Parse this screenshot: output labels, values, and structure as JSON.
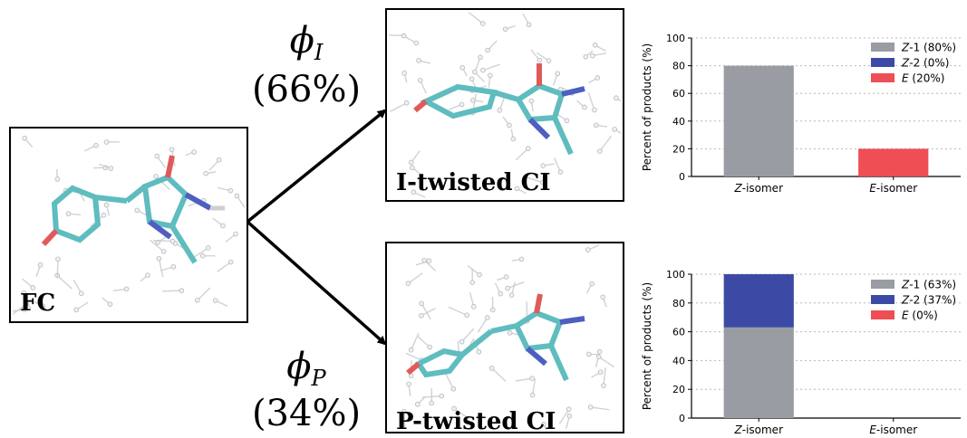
{
  "pathways": {
    "top": {
      "symbol": "ϕ",
      "subscript": "I",
      "percent": "(66%)"
    },
    "bottom": {
      "symbol": "ϕ",
      "subscript": "P",
      "percent": "(34%)"
    }
  },
  "panels": {
    "fc": {
      "label": "FC"
    },
    "i_twisted": {
      "label": "I-twisted CI"
    },
    "p_twisted": {
      "label": "P-twisted CI"
    }
  },
  "chart_data": [
    {
      "type": "bar",
      "stacked": true,
      "categories": [
        "Z-isomer",
        "E-isomer"
      ],
      "ylabel": "Percent of products (%)",
      "ylim": [
        0,
        100
      ],
      "yticks": [
        0,
        20,
        40,
        60,
        80,
        100
      ],
      "grid": true,
      "legend_position": "top-right",
      "series": [
        {
          "name": "Z-1 (80%)",
          "italic": "Z",
          "rest": "-1 (80%)",
          "values": [
            80,
            0
          ],
          "color": "#9a9ca3"
        },
        {
          "name": "Z-2 (0%)",
          "italic": "Z",
          "rest": "-2 (0%)",
          "values": [
            0,
            0
          ],
          "color": "#3d4aa5"
        },
        {
          "name": "E (20%)",
          "italic": "E",
          "rest": " (20%)",
          "values": [
            0,
            20
          ],
          "color": "#ee4e55"
        }
      ]
    },
    {
      "type": "bar",
      "stacked": true,
      "categories": [
        "Z-isomer",
        "E-isomer"
      ],
      "ylabel": "Percent of products (%)",
      "ylim": [
        0,
        100
      ],
      "yticks": [
        0,
        20,
        40,
        60,
        80,
        100
      ],
      "grid": true,
      "legend_position": "top-right",
      "series": [
        {
          "name": "Z-1 (63%)",
          "italic": "Z",
          "rest": "-1 (63%)",
          "values": [
            63,
            0
          ],
          "color": "#9a9ca3"
        },
        {
          "name": "Z-2 (37%)",
          "italic": "Z",
          "rest": "-2 (37%)",
          "values": [
            37,
            0
          ],
          "color": "#3d4aa5"
        },
        {
          "name": "E (0%)",
          "italic": "E",
          "rest": " (0%)",
          "values": [
            0,
            0
          ],
          "color": "#ee4e55"
        }
      ]
    }
  ]
}
